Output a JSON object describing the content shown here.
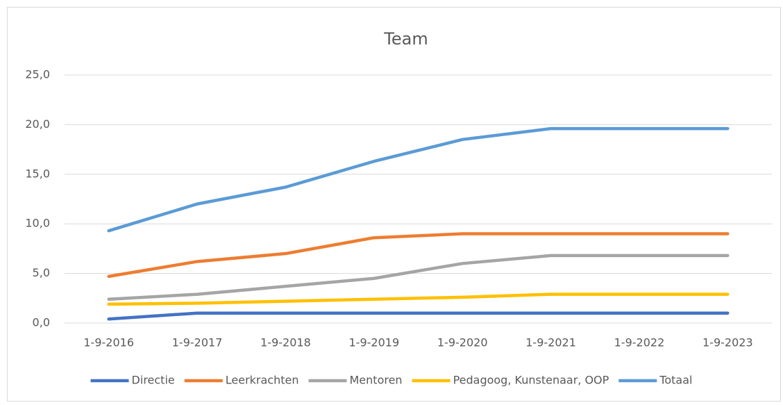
{
  "chart_data": {
    "type": "line",
    "title": "Team",
    "categories": [
      "1-9-2016",
      "1-9-2017",
      "1-9-2018",
      "1-9-2019",
      "1-9-2020",
      "1-9-2021",
      "1-9-2022",
      "1-9-2023"
    ],
    "series": [
      {
        "name": "Directie",
        "color": "#4472c4",
        "values": [
          0.4,
          1.0,
          1.0,
          1.0,
          1.0,
          1.0,
          1.0,
          1.0
        ]
      },
      {
        "name": "Leerkrachten",
        "color": "#ed7d31",
        "values": [
          4.7,
          6.2,
          7.0,
          8.6,
          9.0,
          9.0,
          9.0,
          9.0
        ]
      },
      {
        "name": "Mentoren",
        "color": "#a5a5a5",
        "values": [
          2.4,
          2.9,
          3.7,
          4.5,
          6.0,
          6.8,
          6.8,
          6.8
        ]
      },
      {
        "name": "Pedagoog, Kunstenaar, OOP",
        "color": "#ffc000",
        "values": [
          1.9,
          2.0,
          2.2,
          2.4,
          2.6,
          2.9,
          2.9,
          2.9
        ]
      },
      {
        "name": "Totaal",
        "color": "#5b9bd5",
        "values": [
          9.3,
          12.0,
          13.7,
          16.3,
          18.5,
          19.6,
          19.6,
          19.6
        ]
      }
    ],
    "ylim": [
      0,
      25
    ],
    "yticks": [
      {
        "value": 0,
        "label": "0,0"
      },
      {
        "value": 5,
        "label": "5,0"
      },
      {
        "value": 10,
        "label": "10,0"
      },
      {
        "value": 15,
        "label": "15,0"
      },
      {
        "value": 20,
        "label": "20,0"
      },
      {
        "value": 25,
        "label": "25,0"
      }
    ],
    "grid": true,
    "legend": "bottom"
  }
}
